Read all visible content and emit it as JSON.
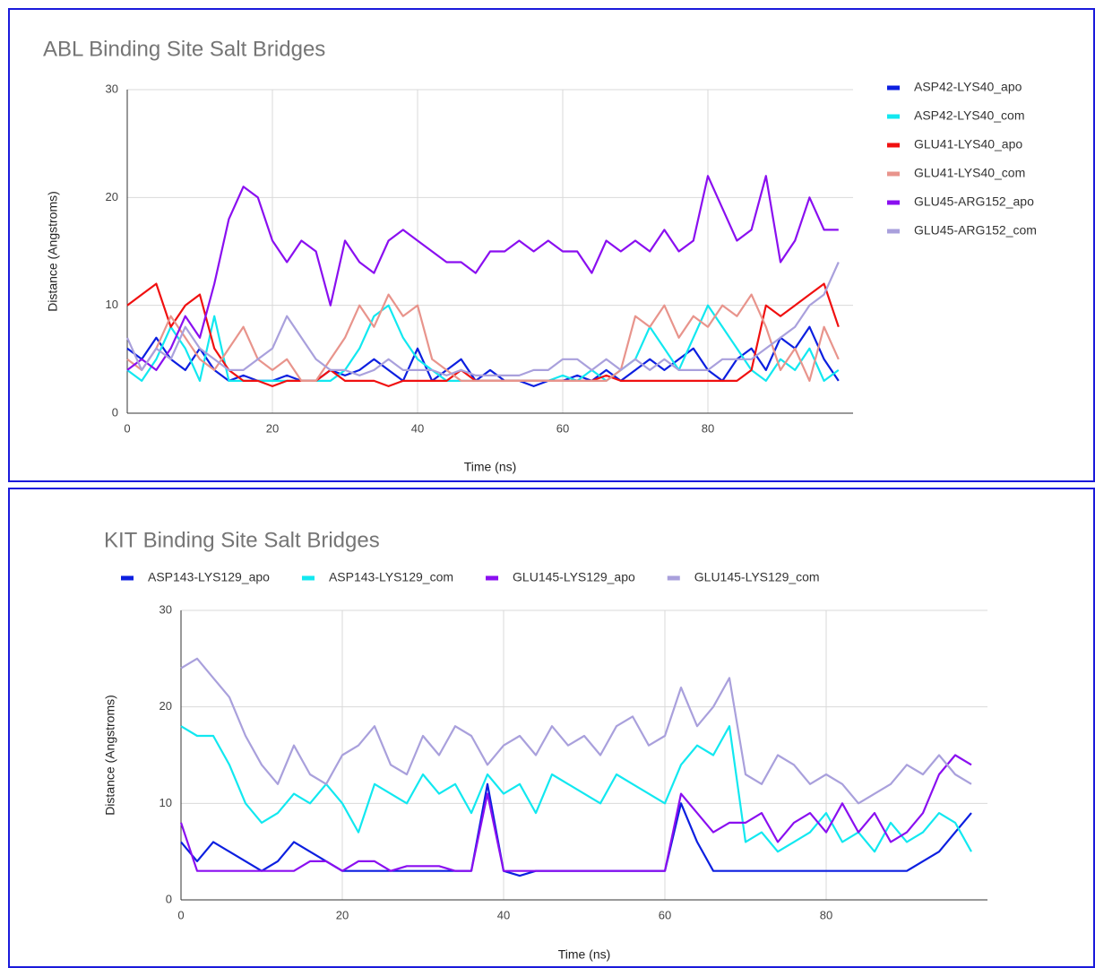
{
  "chart_data": [
    {
      "type": "line",
      "title": "ABL Binding Site Salt Bridges",
      "x_label": "Time (ns)",
      "y_label": "Distance (Angstroms)",
      "legend": "right",
      "grid": true,
      "xlim": [
        0,
        100
      ],
      "ylim": [
        0,
        30
      ],
      "xticks": [
        0,
        20,
        40,
        60,
        80
      ],
      "yticks": [
        0,
        10,
        20,
        30
      ],
      "x": [
        0,
        2,
        4,
        6,
        8,
        10,
        12,
        14,
        16,
        18,
        20,
        22,
        24,
        26,
        28,
        30,
        32,
        34,
        36,
        38,
        40,
        42,
        44,
        46,
        48,
        50,
        52,
        54,
        56,
        58,
        60,
        62,
        64,
        66,
        68,
        70,
        72,
        74,
        76,
        78,
        80,
        82,
        84,
        86,
        88,
        90,
        92,
        94,
        96,
        98
      ],
      "series": [
        {
          "name": "ASP42-LYS40_apo",
          "color": "#0c1fe0",
          "values": [
            6,
            5,
            7,
            5,
            4,
            6,
            4,
            3,
            3.5,
            3,
            3,
            3.5,
            3,
            3,
            4,
            3.5,
            4,
            5,
            4,
            3,
            6,
            3,
            4,
            5,
            3,
            4,
            3,
            3,
            2.5,
            3,
            3,
            3.5,
            3,
            4,
            3,
            4,
            5,
            4,
            5,
            6,
            4,
            3,
            5,
            6,
            4,
            7,
            6,
            8,
            5,
            3
          ]
        },
        {
          "name": "ASP42-LYS40_com",
          "color": "#12e8f0",
          "values": [
            4,
            3,
            5,
            8,
            6,
            3,
            9,
            3,
            3,
            3,
            3,
            3,
            3,
            3,
            3,
            4,
            6,
            9,
            10,
            7,
            5,
            4,
            3,
            3,
            3,
            3,
            3,
            3,
            3,
            3,
            3.5,
            3,
            4,
            3,
            4,
            5,
            8,
            6,
            4,
            7,
            10,
            8,
            6,
            4,
            3,
            5,
            4,
            6,
            3,
            4
          ]
        },
        {
          "name": "GLU41-LYS40_apo",
          "color": "#f01010",
          "values": [
            10,
            11,
            12,
            8,
            10,
            11,
            6,
            4,
            3,
            3,
            2.5,
            3,
            3,
            3,
            4,
            3,
            3,
            3,
            2.5,
            3,
            3,
            3,
            3,
            4,
            3,
            3,
            3,
            3,
            3,
            3,
            3,
            3,
            3,
            3.5,
            3,
            3,
            3,
            3,
            3,
            3,
            3,
            3,
            3,
            4,
            10,
            9,
            10,
            11,
            12,
            8
          ]
        },
        {
          "name": "GLU41-LYS40_com",
          "color": "#e8948c",
          "values": [
            5,
            4,
            6,
            9,
            7,
            5,
            4,
            6,
            8,
            5,
            4,
            5,
            3,
            3,
            5,
            7,
            10,
            8,
            11,
            9,
            10,
            5,
            4,
            3,
            3,
            3,
            3,
            3,
            3,
            3,
            3,
            3,
            3,
            3,
            4,
            9,
            8,
            10,
            7,
            9,
            8,
            10,
            9,
            11,
            8,
            4,
            6,
            3,
            8,
            5
          ]
        },
        {
          "name": "GLU45-ARG152_apo",
          "color": "#8a0ff0",
          "values": [
            4,
            5,
            4,
            6,
            9,
            7,
            12,
            18,
            21,
            20,
            16,
            14,
            16,
            15,
            10,
            16,
            14,
            13,
            16,
            17,
            16,
            15,
            14,
            14,
            13,
            15,
            15,
            16,
            15,
            16,
            15,
            15,
            13,
            16,
            15,
            16,
            15,
            17,
            15,
            16,
            22,
            19,
            16,
            17,
            22,
            14,
            16,
            20,
            17,
            17
          ]
        },
        {
          "name": "GLU45-ARG152_com",
          "color": "#a9a0dc",
          "values": [
            7,
            4,
            6,
            5,
            8,
            6,
            5,
            4,
            4,
            5,
            6,
            9,
            7,
            5,
            4,
            4,
            3.5,
            4,
            5,
            4,
            4,
            4,
            3.5,
            4,
            3.5,
            3.5,
            3.5,
            3.5,
            4,
            4,
            5,
            5,
            4,
            5,
            4,
            5,
            4,
            5,
            4,
            4,
            4,
            5,
            5,
            5,
            6,
            7,
            8,
            10,
            11,
            14
          ]
        }
      ]
    },
    {
      "type": "line",
      "title": "KIT Binding Site Salt Bridges",
      "x_label": "Time (ns)",
      "y_label": "Distance (Angstroms)",
      "legend": "top",
      "grid": true,
      "xlim": [
        0,
        100
      ],
      "ylim": [
        0,
        30
      ],
      "xticks": [
        0,
        20,
        40,
        60,
        80
      ],
      "yticks": [
        0,
        10,
        20,
        30
      ],
      "x": [
        0,
        2,
        4,
        6,
        8,
        10,
        12,
        14,
        16,
        18,
        20,
        22,
        24,
        26,
        28,
        30,
        32,
        34,
        36,
        38,
        40,
        42,
        44,
        46,
        48,
        50,
        52,
        54,
        56,
        58,
        60,
        62,
        64,
        66,
        68,
        70,
        72,
        74,
        76,
        78,
        80,
        82,
        84,
        86,
        88,
        90,
        92,
        94,
        96,
        98
      ],
      "series": [
        {
          "name": "ASP143-LYS129_apo",
          "color": "#0c1fe0",
          "values": [
            6,
            4,
            6,
            5,
            4,
            3,
            4,
            6,
            5,
            4,
            3,
            3,
            3,
            3,
            3,
            3,
            3,
            3,
            3,
            12,
            3,
            2.5,
            3,
            3,
            3,
            3,
            3,
            3,
            3,
            3,
            3,
            10,
            6,
            3,
            3,
            3,
            3,
            3,
            3,
            3,
            3,
            3,
            3,
            3,
            3,
            3,
            4,
            5,
            7,
            9
          ]
        },
        {
          "name": "ASP143-LYS129_com",
          "color": "#12e8f0",
          "values": [
            18,
            17,
            17,
            14,
            10,
            8,
            9,
            11,
            10,
            12,
            10,
            7,
            12,
            11,
            10,
            13,
            11,
            12,
            9,
            13,
            11,
            12,
            9,
            13,
            12,
            11,
            10,
            13,
            12,
            11,
            10,
            14,
            16,
            15,
            18,
            6,
            7,
            5,
            6,
            7,
            9,
            6,
            7,
            5,
            8,
            6,
            7,
            9,
            8,
            5
          ]
        },
        {
          "name": "GLU145-LYS129_apo",
          "color": "#8a0ff0",
          "values": [
            8,
            3,
            3,
            3,
            3,
            3,
            3,
            3,
            4,
            4,
            3,
            4,
            4,
            3,
            3.5,
            3.5,
            3.5,
            3,
            3,
            11,
            3,
            3,
            3,
            3,
            3,
            3,
            3,
            3,
            3,
            3,
            3,
            11,
            9,
            7,
            8,
            8,
            9,
            6,
            8,
            9,
            7,
            10,
            7,
            9,
            6,
            7,
            9,
            13,
            15,
            14
          ]
        },
        {
          "name": "GLU145-LYS129_com",
          "color": "#a9a0dc",
          "values": [
            24,
            25,
            23,
            21,
            17,
            14,
            12,
            16,
            13,
            12,
            15,
            16,
            18,
            14,
            13,
            17,
            15,
            18,
            17,
            14,
            16,
            17,
            15,
            18,
            16,
            17,
            15,
            18,
            19,
            16,
            17,
            22,
            18,
            20,
            23,
            13,
            12,
            15,
            14,
            12,
            13,
            12,
            10,
            11,
            12,
            14,
            13,
            15,
            13,
            12
          ]
        }
      ]
    }
  ]
}
